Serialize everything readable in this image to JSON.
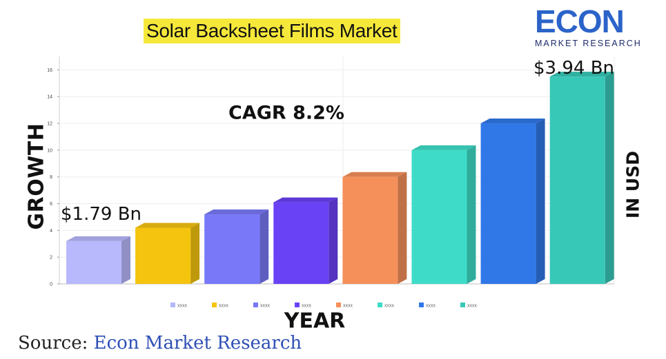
{
  "header": {
    "title": "Solar Backsheet Films Market"
  },
  "logo": {
    "wordmark": "ECON",
    "subtitle": "MARKET RESEARCH"
  },
  "annotations": {
    "cagr": "CAGR 8.2%",
    "first_value": "$1.79 Bn",
    "last_value": "$3.94 Bn",
    "unit": "IN USD"
  },
  "source": {
    "prefix": "Source: ",
    "name": "Econ Market Research"
  },
  "chart_data": {
    "type": "bar",
    "title": "Solar Backsheet Films Market",
    "xlabel": "YEAR",
    "ylabel": "GROWTH",
    "ylim": [
      0,
      17
    ],
    "yticks": [
      "0",
      "2",
      "4",
      "6",
      "8",
      "10",
      "12",
      "14",
      "16"
    ],
    "grid": true,
    "legend_position": "bottom",
    "categories": [
      "xxxx",
      "xxxx",
      "xxxx",
      "xxxx",
      "xxxx",
      "xxxx",
      "xxxx",
      "xxxx"
    ],
    "values": [
      3.2,
      4.2,
      5.2,
      6.1,
      8.0,
      10.0,
      12.0,
      15.5
    ],
    "colors": [
      "#b8b8fc",
      "#f5c40f",
      "#7878f8",
      "#6a42f5",
      "#f5905a",
      "#3edcc8",
      "#3078e8",
      "#38c8b8"
    ]
  }
}
